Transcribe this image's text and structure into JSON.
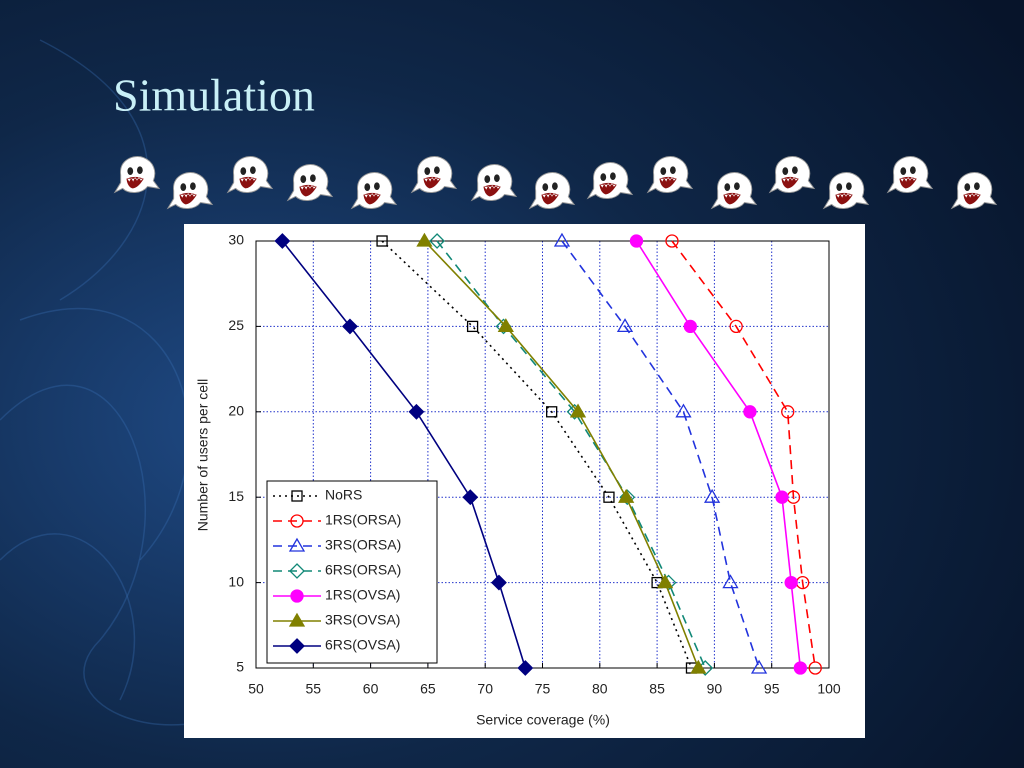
{
  "slide": {
    "title": "Simulation"
  },
  "chart_data": {
    "type": "line",
    "xlabel": "Service coverage (%)",
    "ylabel": "Number of users per cell",
    "y": [
      30,
      25,
      20,
      15,
      10,
      5
    ],
    "xlim": [
      50,
      100
    ],
    "ylim": [
      5,
      30
    ],
    "xticks": [
      50,
      55,
      60,
      65,
      70,
      75,
      80,
      85,
      90,
      95,
      100
    ],
    "yticks": [
      5,
      10,
      15,
      20,
      25,
      30
    ],
    "grid": true,
    "legend": "lower left",
    "series": [
      {
        "name": "NoRS",
        "color": "#000000",
        "marker": "square",
        "filled": false,
        "dash": "dotted",
        "values": [
          61.0,
          68.9,
          75.8,
          80.8,
          85.0,
          88.0
        ]
      },
      {
        "name": "1RS(ORSA)",
        "color": "#ff0000",
        "marker": "circle",
        "filled": false,
        "dash": "dashed",
        "values": [
          86.3,
          91.9,
          96.4,
          96.9,
          97.7,
          98.8
        ]
      },
      {
        "name": "3RS(ORSA)",
        "color": "#2233dd",
        "marker": "triangle",
        "filled": false,
        "dash": "dashed",
        "values": [
          76.7,
          82.2,
          87.3,
          89.8,
          91.4,
          93.9
        ]
      },
      {
        "name": "6RS(ORSA)",
        "color": "#118877",
        "marker": "diamond",
        "filled": false,
        "dash": "dashed",
        "values": [
          65.8,
          71.6,
          77.8,
          82.4,
          86.0,
          89.2
        ]
      },
      {
        "name": "1RS(OVSA)",
        "color": "#ff00ff",
        "marker": "circle",
        "filled": true,
        "dash": "solid",
        "values": [
          83.2,
          87.9,
          93.1,
          95.9,
          96.7,
          97.5
        ]
      },
      {
        "name": "3RS(OVSA)",
        "color": "#808000",
        "marker": "triangle",
        "filled": true,
        "dash": "solid",
        "values": [
          64.7,
          71.8,
          78.1,
          82.3,
          85.7,
          88.6
        ]
      },
      {
        "name": "6RS(OVSA)",
        "color": "#000080",
        "marker": "diamond",
        "filled": true,
        "dash": "solid",
        "values": [
          52.3,
          58.2,
          64.0,
          68.7,
          71.2,
          73.5
        ]
      }
    ]
  }
}
